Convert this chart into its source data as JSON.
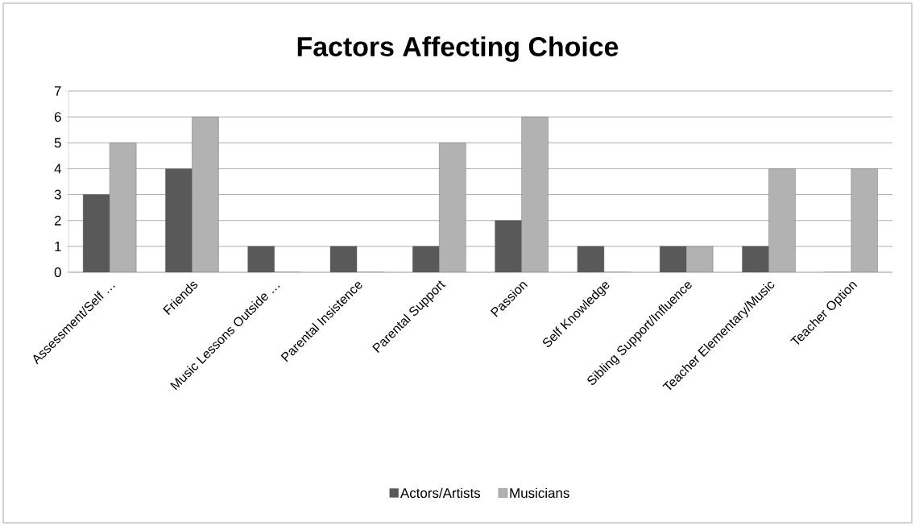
{
  "chart_data": {
    "type": "bar",
    "title": "Factors Affecting Choice",
    "categories": [
      "Assessment/Self …",
      "Friends",
      "Music Lessons Outside …",
      "Parental Insistence",
      "Parental Support",
      "Passion",
      "Self Knowledge",
      "Sibling Support/Influence",
      "Teacher Elementary/Music",
      "Teacher Option"
    ],
    "series": [
      {
        "name": "Actors/Artists",
        "color": "#595959",
        "values": [
          3,
          4,
          1,
          1,
          1,
          2,
          1,
          1,
          1,
          0
        ]
      },
      {
        "name": "Musicians",
        "color": "#b2b2b2",
        "values": [
          5,
          6,
          0,
          0,
          5,
          6,
          0,
          1,
          4,
          4
        ]
      }
    ],
    "ylim": [
      0,
      7
    ],
    "yticks": [
      0,
      1,
      2,
      3,
      4,
      5,
      6,
      7
    ],
    "grid": "y",
    "legend": "bottom"
  }
}
